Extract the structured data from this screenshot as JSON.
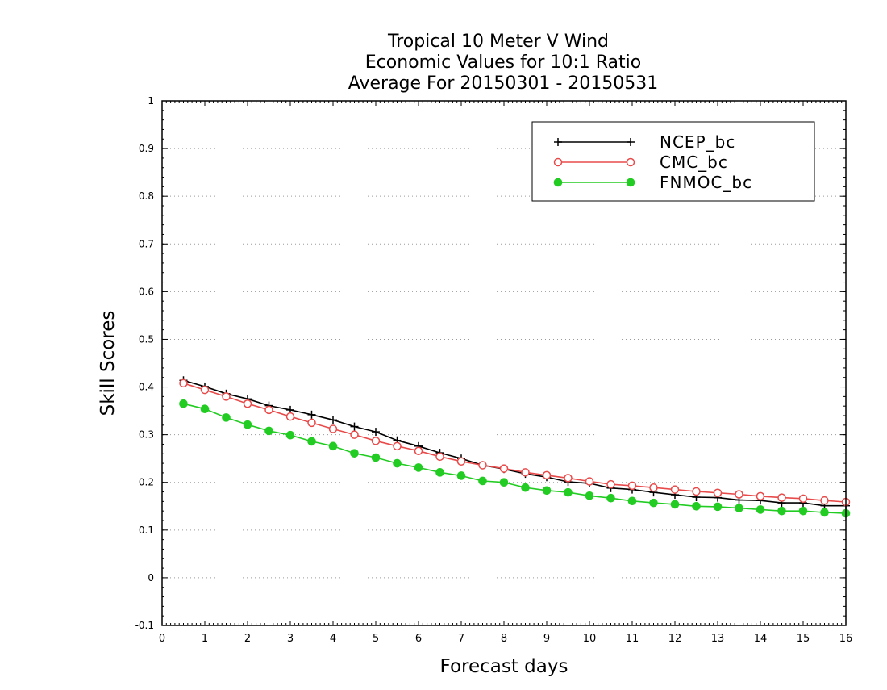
{
  "chart_data": {
    "type": "line",
    "title_lines": [
      "Tropical 10 Meter V Wind",
      "Economic Values for 10:1 Ratio",
      "Average For 20150301 - 20150531"
    ],
    "xlabel": "Forecast days",
    "ylabel": "Skill Scores",
    "xlim": [
      0,
      16
    ],
    "ylim": [
      -0.1,
      1
    ],
    "x_ticks": [
      0,
      1,
      2,
      3,
      4,
      5,
      6,
      7,
      8,
      9,
      10,
      11,
      12,
      13,
      14,
      15,
      16
    ],
    "y_ticks": [
      -0.1,
      0,
      0.1,
      0.2,
      0.3,
      0.4,
      0.5,
      0.6,
      0.7,
      0.8,
      0.9,
      1
    ],
    "y_tick_labels": [
      "-0.1",
      "0",
      "0.1",
      "0.2",
      "0.3",
      "0.4",
      "0.5",
      "0.6",
      "0.7",
      "0.8",
      "0.9",
      "1"
    ],
    "grid": "horizontal dotted",
    "legend_position": "top-right",
    "x": [
      0.5,
      1,
      1.5,
      2,
      2.5,
      3,
      3.5,
      4,
      4.5,
      5,
      5.5,
      6,
      6.5,
      7,
      7.5,
      8,
      8.5,
      9,
      9.5,
      10,
      10.5,
      11,
      11.5,
      12,
      12.5,
      13,
      13.5,
      14,
      14.5,
      15,
      15.5,
      16
    ],
    "series": [
      {
        "name": "NCEP_bc",
        "color": "#000000",
        "marker": "plus",
        "values": [
          0.414,
          0.401,
          0.386,
          0.375,
          0.361,
          0.352,
          0.342,
          0.331,
          0.317,
          0.306,
          0.288,
          0.276,
          0.262,
          0.25,
          0.236,
          0.228,
          0.218,
          0.211,
          0.201,
          0.198,
          0.188,
          0.185,
          0.179,
          0.174,
          0.169,
          0.168,
          0.163,
          0.162,
          0.157,
          0.157,
          0.151,
          0.151
        ]
      },
      {
        "name": "CMC_bc",
        "color": "#e84a4a",
        "marker": "open-circle",
        "values": [
          0.408,
          0.394,
          0.38,
          0.365,
          0.352,
          0.338,
          0.325,
          0.312,
          0.3,
          0.287,
          0.276,
          0.266,
          0.254,
          0.244,
          0.236,
          0.229,
          0.221,
          0.215,
          0.209,
          0.202,
          0.196,
          0.193,
          0.189,
          0.185,
          0.181,
          0.178,
          0.175,
          0.171,
          0.168,
          0.166,
          0.162,
          0.159
        ]
      },
      {
        "name": "FNMOC_bc",
        "color": "#22cc22",
        "marker": "filled-circle",
        "values": [
          0.365,
          0.354,
          0.336,
          0.321,
          0.308,
          0.299,
          0.286,
          0.276,
          0.261,
          0.252,
          0.24,
          0.231,
          0.221,
          0.214,
          0.203,
          0.2,
          0.189,
          0.183,
          0.179,
          0.172,
          0.167,
          0.161,
          0.157,
          0.154,
          0.15,
          0.149,
          0.146,
          0.143,
          0.14,
          0.14,
          0.137,
          0.135
        ]
      }
    ]
  }
}
